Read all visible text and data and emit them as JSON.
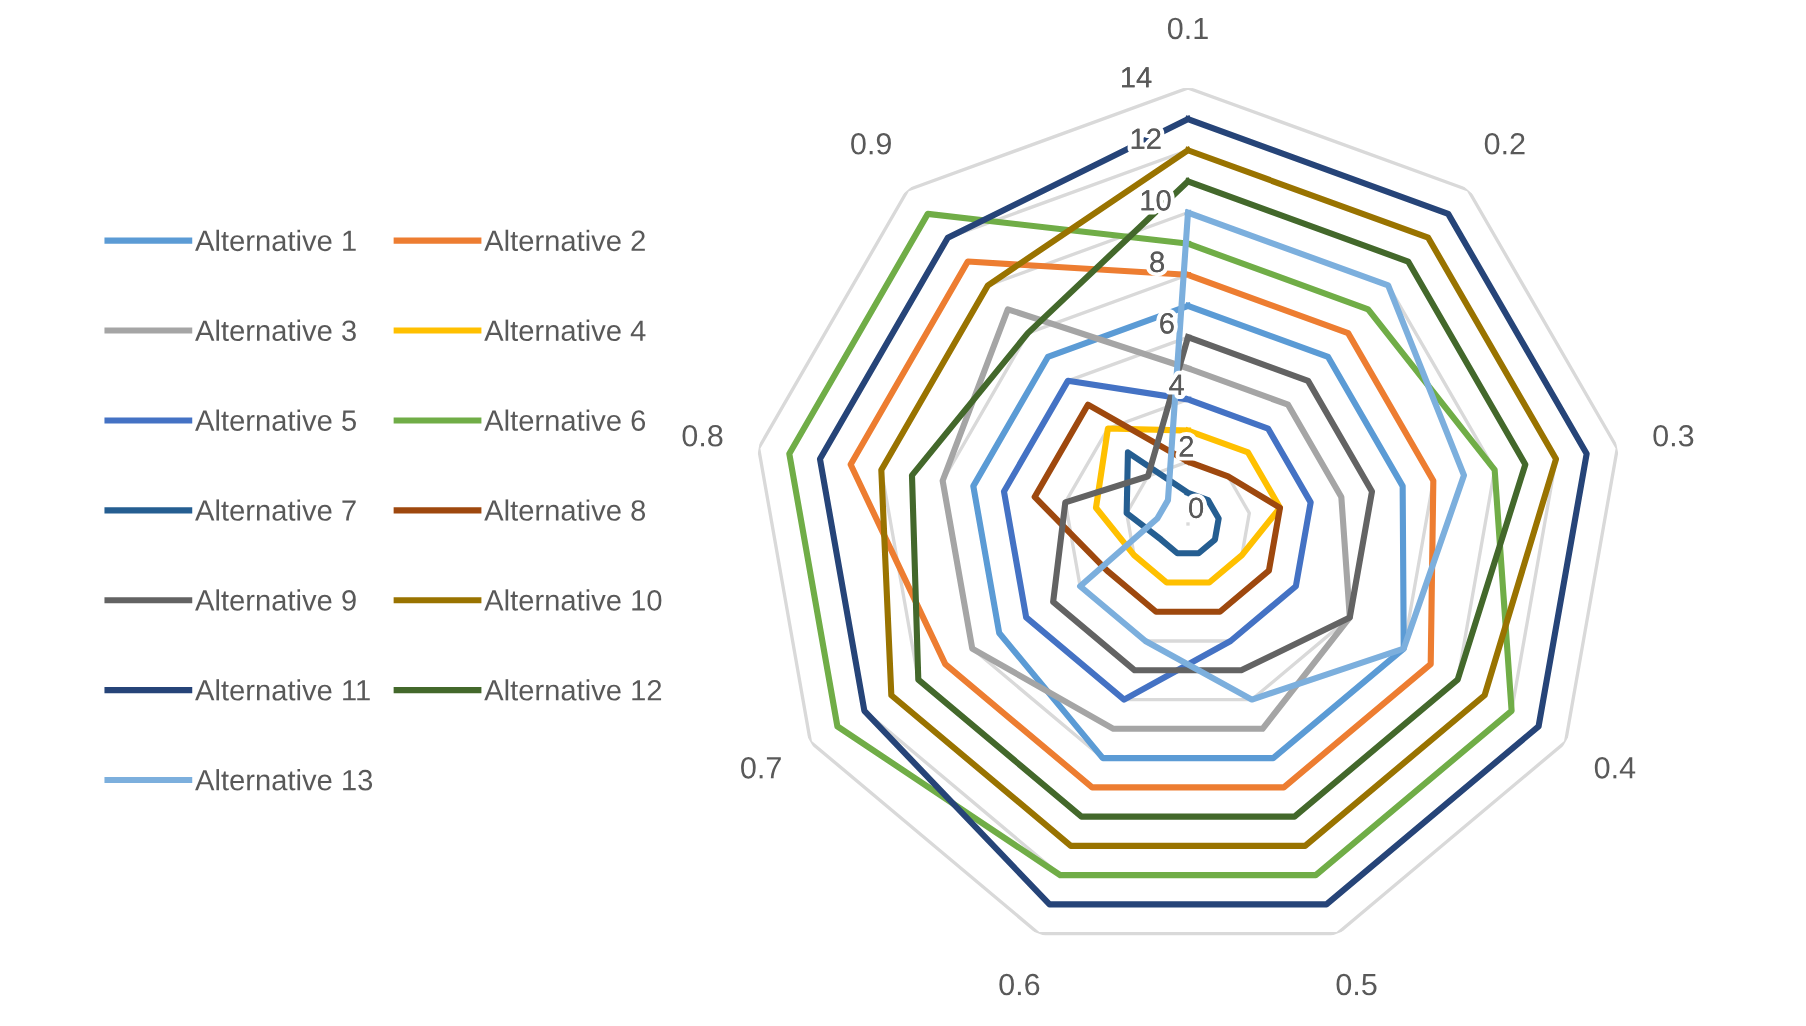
{
  "chart_data": {
    "type": "radar",
    "categories": [
      "0.1",
      "0.2",
      "0.3",
      "0.4",
      "0.5",
      "0.6",
      "0.7",
      "0.8",
      "0.9"
    ],
    "ylim": [
      0,
      14
    ],
    "yticks": [
      0,
      2,
      4,
      6,
      8,
      10,
      12,
      14
    ],
    "grid": true,
    "legend": "left",
    "marker": "none",
    "line_style": "solid",
    "series": [
      {
        "name": "Alternative 1",
        "color": "#5b9bd5",
        "values": [
          7,
          7,
          7,
          8,
          8,
          8,
          7,
          7,
          7
        ]
      },
      {
        "name": "Alternative 2",
        "color": "#ed7d31",
        "values": [
          8,
          8,
          8,
          9,
          9,
          9,
          9,
          11,
          11
        ]
      },
      {
        "name": "Alternative 3",
        "color": "#a5a5a5",
        "values": [
          5,
          5,
          5,
          6,
          7,
          7,
          8,
          8,
          9
        ]
      },
      {
        "name": "Alternative 4",
        "color": "#ffc000",
        "values": [
          3,
          3,
          3,
          2,
          2,
          2,
          2,
          3,
          4
        ]
      },
      {
        "name": "Alternative 5",
        "color": "#4472c4",
        "values": [
          4,
          4,
          4,
          4,
          4,
          6,
          6,
          6,
          6
        ]
      },
      {
        "name": "Alternative 6",
        "color": "#70ad47",
        "values": [
          9,
          9,
          10,
          12,
          12,
          12,
          13,
          13,
          13
        ]
      },
      {
        "name": "Alternative 7",
        "color": "#255e91",
        "values": [
          1,
          1,
          1,
          1,
          1,
          1,
          1,
          2,
          3
        ]
      },
      {
        "name": "Alternative 8",
        "color": "#9e480e",
        "values": [
          2,
          2,
          3,
          3,
          3,
          3,
          3,
          5,
          5
        ]
      },
      {
        "name": "Alternative 9",
        "color": "#636363",
        "values": [
          6,
          6,
          6,
          6,
          5,
          5,
          5,
          4,
          2
        ]
      },
      {
        "name": "Alternative 10",
        "color": "#997300",
        "values": [
          12,
          12,
          12,
          11,
          11,
          11,
          11,
          10,
          10
        ]
      },
      {
        "name": "Alternative 11",
        "color": "#264478",
        "values": [
          13,
          13,
          13,
          13,
          13,
          13,
          12,
          12,
          12
        ]
      },
      {
        "name": "Alternative 12",
        "color": "#43682b",
        "values": [
          11,
          11,
          11,
          10,
          10,
          10,
          10,
          9,
          8
        ]
      },
      {
        "name": "Alternative 13",
        "color": "#7cafdd",
        "values": [
          10,
          10,
          9,
          8,
          6,
          4,
          4,
          1,
          1
        ]
      }
    ]
  }
}
